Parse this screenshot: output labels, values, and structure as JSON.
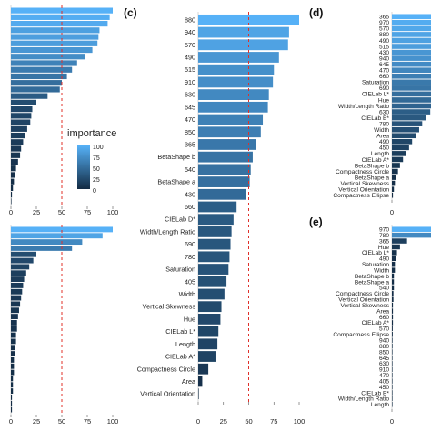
{
  "panel_tags": [
    "(c)",
    "(d)",
    "(e)"
  ],
  "threshold": 50,
  "legend": {
    "title": "importance",
    "ticks": [
      "100",
      "75",
      "50",
      "25",
      "0"
    ]
  },
  "colors": {
    "low": "#132b43",
    "high": "#56b1f7",
    "threshold_line": "#e0302a"
  },
  "chart_data": [
    {
      "id": "a",
      "type": "bar",
      "orientation": "horizontal",
      "labels_visible": false,
      "values": [
        100,
        97,
        95,
        87,
        86,
        85,
        80,
        73,
        65,
        60,
        55,
        50,
        48,
        36,
        25,
        21,
        20,
        19,
        16,
        14,
        12,
        10,
        9,
        7,
        5,
        4,
        3,
        2,
        1,
        0.5
      ],
      "xticks": [
        "0",
        "25",
        "50",
        "75",
        "100"
      ],
      "xlim": [
        0,
        100
      ]
    },
    {
      "id": "b",
      "type": "bar",
      "orientation": "horizontal",
      "labels_visible": false,
      "values": [
        100,
        90,
        70,
        60,
        25,
        22,
        18,
        15,
        13,
        12,
        11,
        10,
        9,
        8,
        7,
        6,
        6,
        5,
        5,
        4,
        4,
        3,
        3,
        3,
        2,
        2,
        2,
        1,
        1,
        1
      ],
      "xticks": [
        "0",
        "25",
        "50",
        "75",
        "100"
      ],
      "xlim": [
        0,
        100
      ]
    },
    {
      "id": "c",
      "type": "bar",
      "orientation": "horizontal",
      "categories": [
        "880",
        "940",
        "570",
        "490",
        "515",
        "910",
        "630",
        "645",
        "470",
        "850",
        "365",
        "BetaShape b",
        "540",
        "BetaShape a",
        "430",
        "660",
        "CIELab D*",
        "Width/Length Ratio",
        "690",
        "780",
        "Saturation",
        "405",
        "Width",
        "Vertical Skewness",
        "Hue",
        "CIELab L*",
        "Length",
        "CIELab A*",
        "Compactness Circle",
        "Area",
        "Vertical Orientation"
      ],
      "values": [
        100,
        90,
        89,
        80,
        75,
        74,
        70,
        69,
        64,
        62,
        57,
        54,
        52,
        51,
        47,
        38,
        35,
        33,
        32,
        31,
        30,
        28,
        26,
        23,
        22,
        20,
        19,
        18,
        10,
        4,
        0.5
      ],
      "xticks": [
        "0",
        "25",
        "50",
        "75",
        "100"
      ],
      "xlim": [
        0,
        100
      ]
    },
    {
      "id": "d",
      "type": "bar",
      "orientation": "horizontal",
      "categories": [
        "365",
        "970",
        "570",
        "880",
        "490",
        "515",
        "430",
        "940",
        "645",
        "470",
        "660",
        "Saturation",
        "690",
        "CIELab L*",
        "Hue",
        "Width/Length Ratio",
        "630",
        "CIELab B*",
        "780",
        "Width",
        "Area",
        "490",
        "450",
        "Length",
        "CIELab A*",
        "BetaShape b",
        "Compactness Circle",
        "BetaShape a",
        "Vertical Skewness",
        "Vertical Orientation",
        "Compactness Ellipse"
      ],
      "values": [
        100,
        96,
        93,
        90,
        88,
        85,
        80,
        77,
        72,
        68,
        62,
        58,
        55,
        50,
        46,
        42,
        38,
        34,
        30,
        27,
        24,
        20,
        17,
        14,
        11,
        8,
        6,
        4,
        3,
        2,
        1
      ],
      "xticks": [
        "0"
      ],
      "xlim": [
        0,
        100
      ]
    },
    {
      "id": "e",
      "type": "bar",
      "orientation": "horizontal",
      "categories": [
        "970",
        "780",
        "365",
        "Hue",
        "CIELab L*",
        "490",
        "Saturation",
        "Width",
        "BetaShape b",
        "BetaShape a",
        "540",
        "Compactness Circle",
        "Vertical Orientation",
        "Vertical Skewness",
        "Area",
        "660",
        "CIELab A*",
        "570",
        "Compactness Ellipse",
        "940",
        "880",
        "850",
        "645",
        "630",
        "910",
        "470",
        "405",
        "450",
        "CIELab B*",
        "Width/Length Ratio",
        "Length"
      ],
      "values": [
        100,
        70,
        15,
        8,
        5,
        4,
        3,
        3,
        2,
        2,
        2,
        1.5,
        1.5,
        1,
        1,
        1,
        1,
        0.8,
        0.8,
        0.6,
        0.6,
        0.5,
        0.5,
        0.4,
        0.4,
        0.3,
        0.3,
        0.2,
        0.2,
        0.1,
        0.1
      ],
      "xticks": [
        "0"
      ],
      "xlim": [
        0,
        100
      ]
    }
  ]
}
